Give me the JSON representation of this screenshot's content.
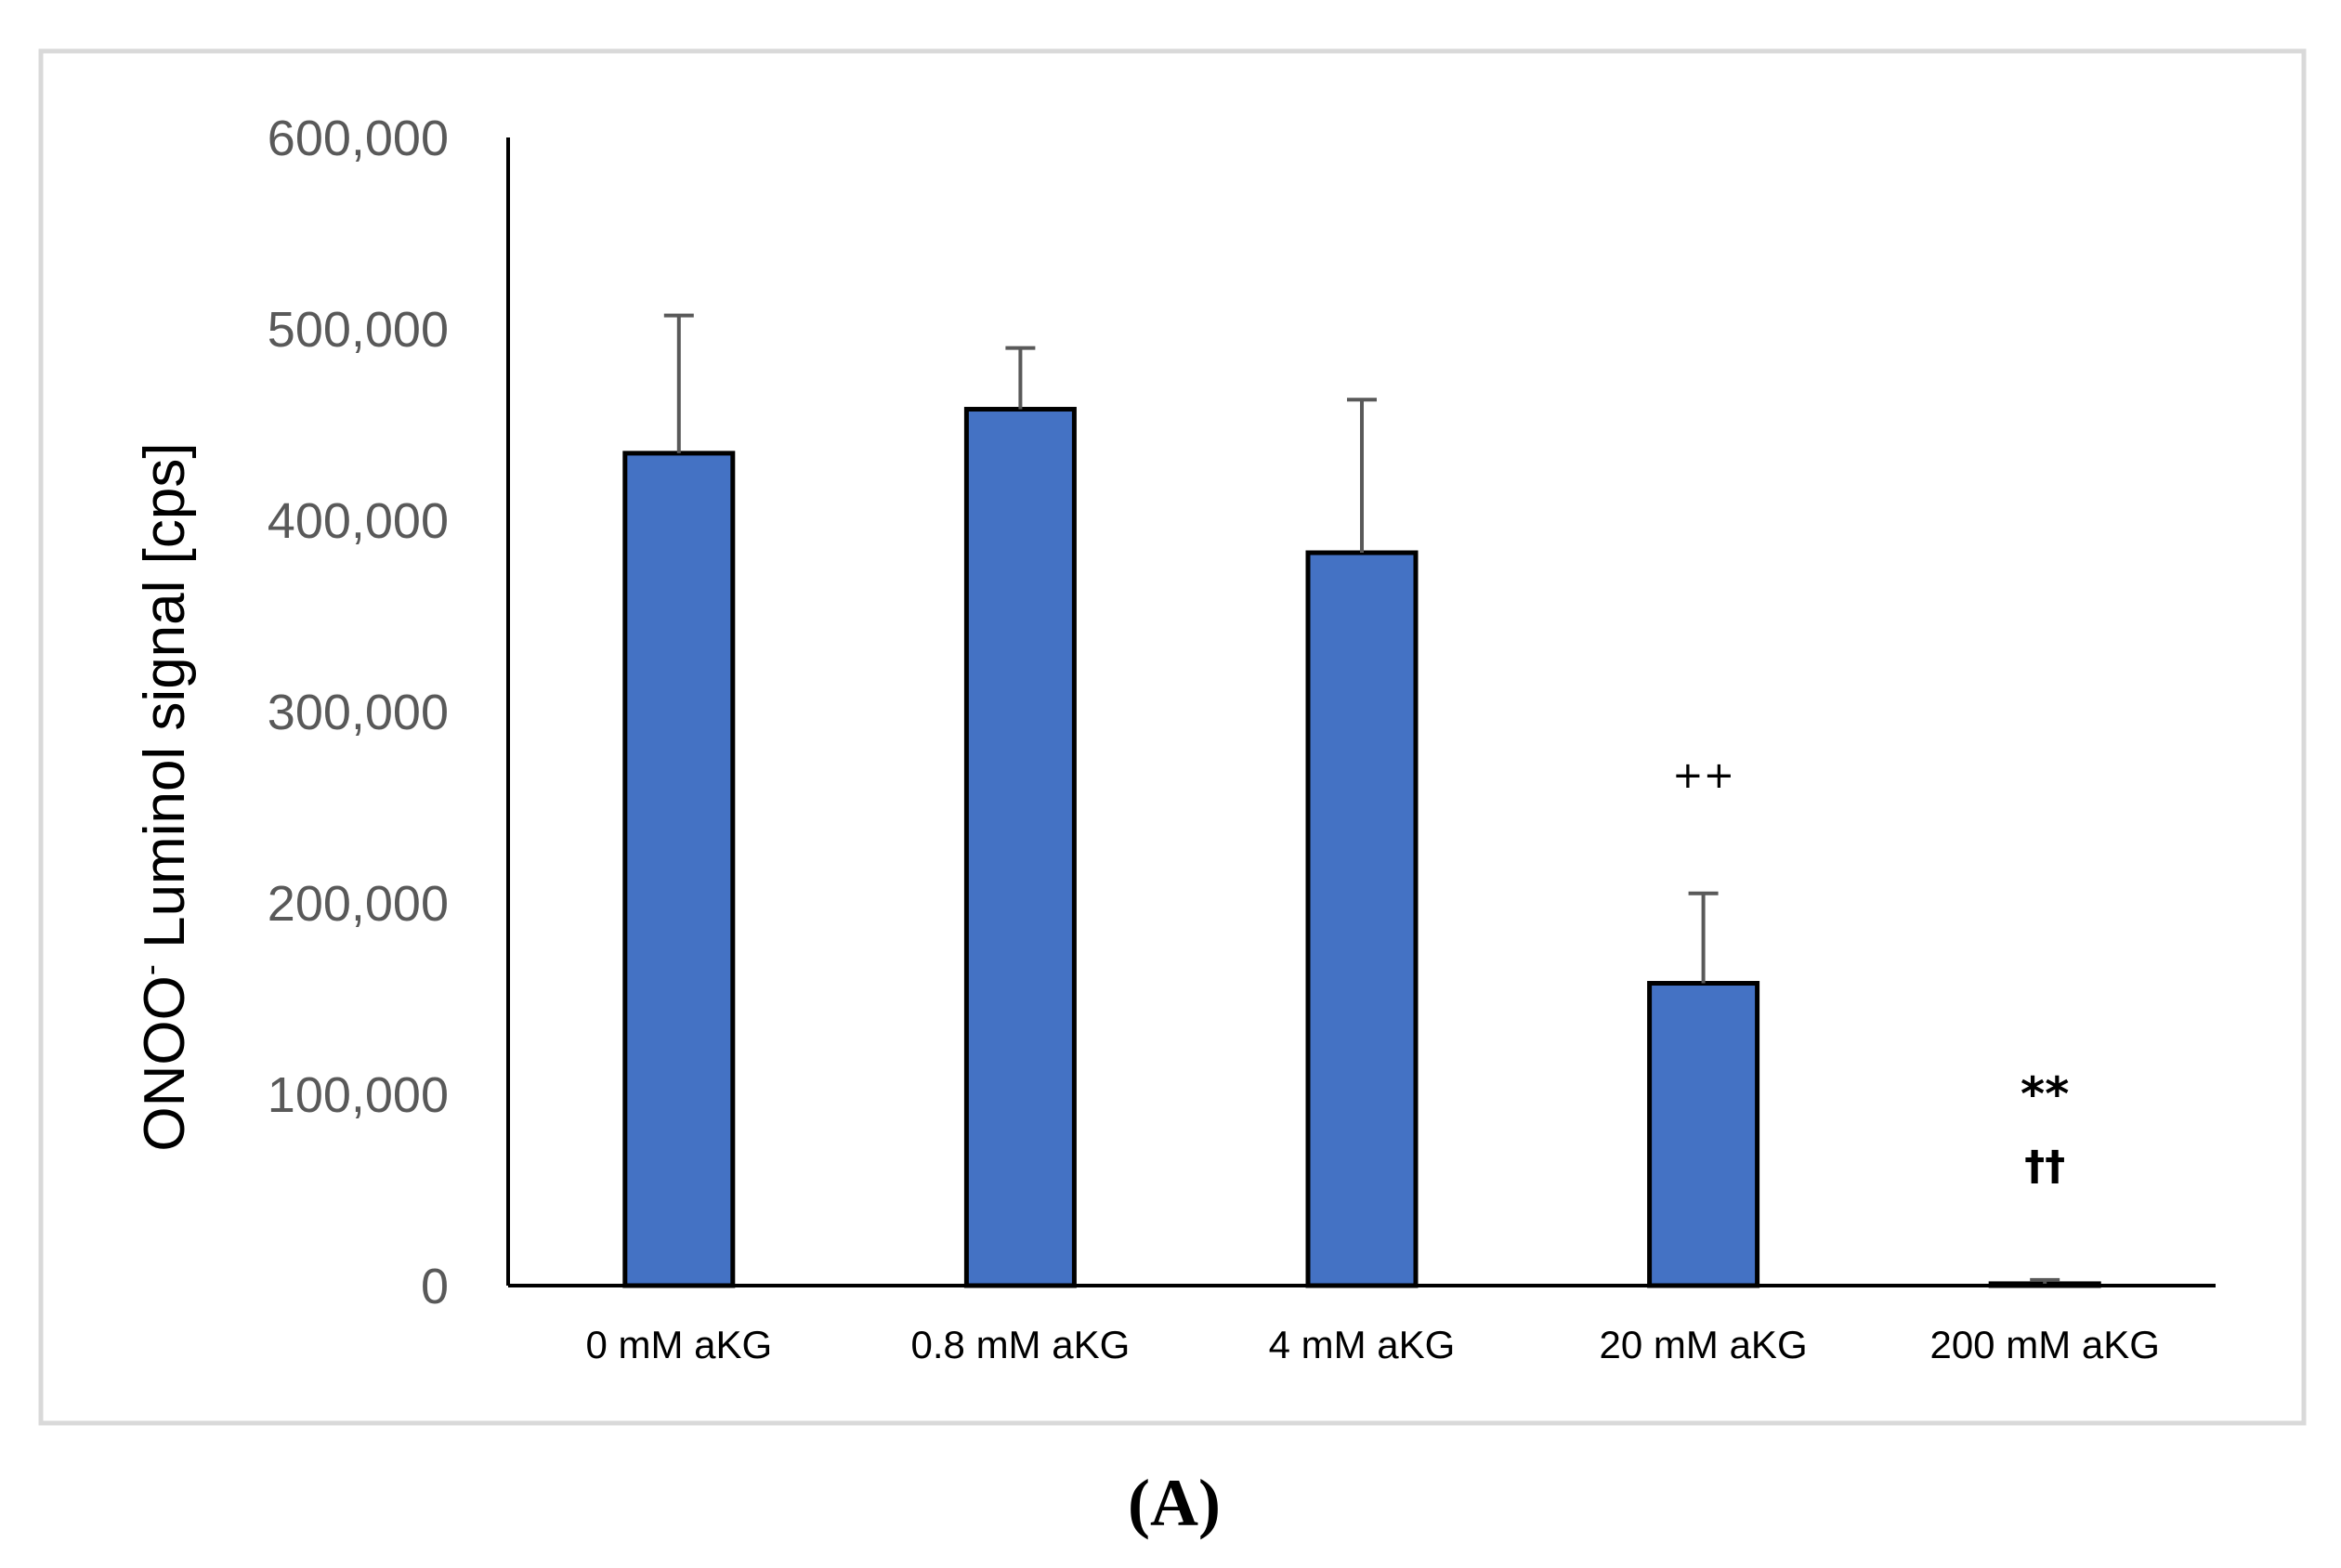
{
  "colors": {
    "bar_fill": "#4472C4",
    "bar_stroke": "#000000",
    "error_bar": "#595959",
    "frame": "#D9D9D9",
    "axis": "#000000"
  },
  "panel_label": "(A)",
  "chart_data": {
    "type": "bar",
    "title": "",
    "ylabel_main": "ONOO",
    "ylabel_sup": "-",
    "ylabel_rest": " Luminol signal [cps]",
    "xlabel": "",
    "ylim": [
      0,
      600000
    ],
    "yticks": [
      0,
      100000,
      200000,
      300000,
      400000,
      500000,
      600000
    ],
    "ytick_labels": [
      "0",
      "100,000",
      "200,000",
      "300,000",
      "400,000",
      "500,000",
      "600,000"
    ],
    "categories": [
      "0 mM aKG",
      "0.8 mM aKG",
      "4 mM aKG",
      "20 mM aKG",
      "200 mM aKG"
    ],
    "values": [
      435000,
      458000,
      383000,
      158000,
      1000
    ],
    "error_upper": [
      72000,
      32000,
      80000,
      47000,
      2000
    ],
    "annotations": [
      {
        "category": "20 mM aKG",
        "lines": [
          "++"
        ]
      },
      {
        "category": "200 mM aKG",
        "lines": [
          "**",
          "††"
        ]
      }
    ],
    "grid": false,
    "legend": "none"
  }
}
